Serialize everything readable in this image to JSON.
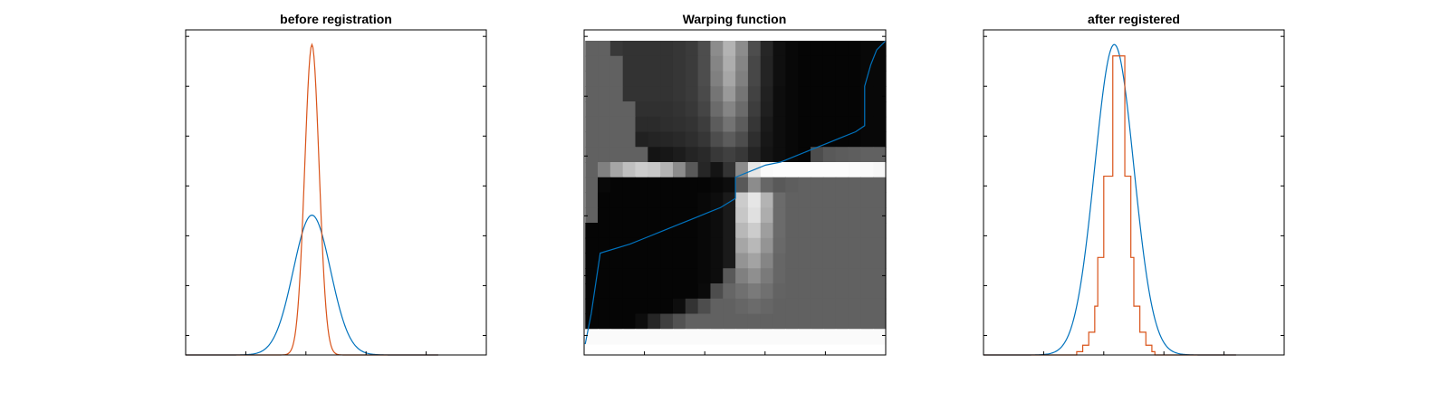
{
  "colors": {
    "blue": "#0072BD",
    "orange": "#D95319",
    "frame": "#000000"
  },
  "chart_data": [
    {
      "type": "line",
      "title": "before registration",
      "xlabel": "",
      "ylabel": "",
      "xlim": [
        0,
        1
      ],
      "ylim": [
        0,
        1
      ],
      "grid": false,
      "series": [
        {
          "color": "#0072BD",
          "gaussian": {
            "mu": 0.42,
            "sigma": 0.062,
            "amp": 0.43
          }
        },
        {
          "color": "#D95319",
          "gaussian": {
            "mu": 0.42,
            "sigma": 0.024,
            "amp": 0.955
          }
        }
      ]
    },
    {
      "type": "heatmap",
      "title": "Warping function",
      "xlabel": "",
      "ylabel": "",
      "xlim": [
        0,
        1
      ],
      "ylim": [
        0,
        1
      ],
      "grid": false,
      "heatmap_rows": [
        [
          0.38,
          0.38,
          0.22,
          0.2,
          0.2,
          0.2,
          0.2,
          0.21,
          0.23,
          0.3,
          0.55,
          0.7,
          0.55,
          0.3,
          0.15,
          0.06,
          0.03,
          0.02,
          0.02,
          0.02,
          0.02,
          0.02,
          0.03,
          0.03
        ],
        [
          0.38,
          0.38,
          0.38,
          0.2,
          0.2,
          0.2,
          0.2,
          0.21,
          0.23,
          0.3,
          0.52,
          0.68,
          0.52,
          0.28,
          0.14,
          0.06,
          0.03,
          0.02,
          0.02,
          0.02,
          0.02,
          0.02,
          0.03,
          0.03
        ],
        [
          0.38,
          0.38,
          0.38,
          0.2,
          0.2,
          0.2,
          0.2,
          0.21,
          0.23,
          0.3,
          0.5,
          0.65,
          0.5,
          0.28,
          0.14,
          0.06,
          0.03,
          0.02,
          0.02,
          0.02,
          0.02,
          0.02,
          0.03,
          0.03
        ],
        [
          0.38,
          0.38,
          0.38,
          0.2,
          0.2,
          0.2,
          0.2,
          0.21,
          0.23,
          0.29,
          0.46,
          0.6,
          0.46,
          0.26,
          0.13,
          0.05,
          0.03,
          0.02,
          0.02,
          0.02,
          0.02,
          0.02,
          0.03,
          0.03
        ],
        [
          0.38,
          0.38,
          0.38,
          0.38,
          0.19,
          0.19,
          0.19,
          0.2,
          0.22,
          0.27,
          0.42,
          0.52,
          0.42,
          0.24,
          0.12,
          0.05,
          0.03,
          0.02,
          0.02,
          0.02,
          0.02,
          0.02,
          0.03,
          0.03
        ],
        [
          0.38,
          0.38,
          0.38,
          0.38,
          0.17,
          0.17,
          0.18,
          0.19,
          0.2,
          0.24,
          0.36,
          0.45,
          0.36,
          0.21,
          0.1,
          0.05,
          0.03,
          0.02,
          0.02,
          0.02,
          0.02,
          0.02,
          0.03,
          0.03
        ],
        [
          0.38,
          0.38,
          0.38,
          0.38,
          0.13,
          0.14,
          0.15,
          0.16,
          0.18,
          0.21,
          0.3,
          0.36,
          0.3,
          0.18,
          0.09,
          0.05,
          0.03,
          0.02,
          0.02,
          0.02,
          0.02,
          0.02,
          0.03,
          0.03
        ],
        [
          0.38,
          0.38,
          0.38,
          0.38,
          0.38,
          0.08,
          0.09,
          0.11,
          0.14,
          0.16,
          0.22,
          0.25,
          0.22,
          0.14,
          0.08,
          0.05,
          0.03,
          0.02,
          0.3,
          0.35,
          0.36,
          0.37,
          0.38,
          0.38
        ],
        [
          0.38,
          0.5,
          0.65,
          0.75,
          0.8,
          0.78,
          0.7,
          0.55,
          0.35,
          0.15,
          0.08,
          0.2,
          0.55,
          0.9,
          0.98,
          0.99,
          0.99,
          0.99,
          0.99,
          0.99,
          0.99,
          0.98,
          0.98,
          0.97
        ],
        [
          0.38,
          0.03,
          0.02,
          0.02,
          0.02,
          0.02,
          0.02,
          0.02,
          0.02,
          0.02,
          0.03,
          0.05,
          0.35,
          0.55,
          0.4,
          0.35,
          0.37,
          0.38,
          0.38,
          0.38,
          0.38,
          0.38,
          0.38,
          0.38
        ],
        [
          0.38,
          0.02,
          0.02,
          0.02,
          0.02,
          0.02,
          0.02,
          0.02,
          0.02,
          0.03,
          0.05,
          0.1,
          0.8,
          0.9,
          0.7,
          0.42,
          0.38,
          0.38,
          0.38,
          0.38,
          0.38,
          0.38,
          0.38,
          0.38
        ],
        [
          0.38,
          0.02,
          0.02,
          0.02,
          0.02,
          0.02,
          0.02,
          0.02,
          0.02,
          0.03,
          0.05,
          0.1,
          0.78,
          0.88,
          0.68,
          0.42,
          0.38,
          0.38,
          0.38,
          0.38,
          0.38,
          0.38,
          0.38,
          0.38
        ],
        [
          0.02,
          0.02,
          0.02,
          0.02,
          0.02,
          0.02,
          0.02,
          0.02,
          0.02,
          0.03,
          0.05,
          0.1,
          0.72,
          0.8,
          0.62,
          0.42,
          0.38,
          0.38,
          0.38,
          0.38,
          0.38,
          0.38,
          0.38,
          0.38
        ],
        [
          0.02,
          0.02,
          0.02,
          0.02,
          0.02,
          0.02,
          0.02,
          0.02,
          0.02,
          0.03,
          0.05,
          0.1,
          0.65,
          0.72,
          0.58,
          0.41,
          0.38,
          0.38,
          0.38,
          0.38,
          0.38,
          0.38,
          0.38,
          0.38
        ],
        [
          0.02,
          0.02,
          0.02,
          0.02,
          0.02,
          0.02,
          0.02,
          0.02,
          0.02,
          0.03,
          0.05,
          0.1,
          0.58,
          0.64,
          0.52,
          0.4,
          0.38,
          0.38,
          0.38,
          0.38,
          0.38,
          0.38,
          0.38,
          0.38
        ],
        [
          0.02,
          0.02,
          0.02,
          0.02,
          0.02,
          0.02,
          0.02,
          0.02,
          0.02,
          0.03,
          0.05,
          0.35,
          0.5,
          0.56,
          0.48,
          0.4,
          0.38,
          0.38,
          0.38,
          0.38,
          0.38,
          0.38,
          0.38,
          0.38
        ],
        [
          0.02,
          0.02,
          0.02,
          0.02,
          0.02,
          0.02,
          0.02,
          0.02,
          0.02,
          0.04,
          0.3,
          0.4,
          0.44,
          0.48,
          0.44,
          0.39,
          0.38,
          0.38,
          0.38,
          0.38,
          0.38,
          0.38,
          0.38,
          0.38
        ],
        [
          0.02,
          0.02,
          0.02,
          0.02,
          0.02,
          0.02,
          0.02,
          0.05,
          0.2,
          0.3,
          0.38,
          0.38,
          0.4,
          0.42,
          0.4,
          0.38,
          0.38,
          0.38,
          0.38,
          0.38,
          0.38,
          0.38,
          0.38,
          0.38
        ],
        [
          0.02,
          0.02,
          0.02,
          0.02,
          0.05,
          0.15,
          0.25,
          0.32,
          0.38,
          0.38,
          0.38,
          0.38,
          0.38,
          0.38,
          0.38,
          0.38,
          0.38,
          0.38,
          0.38,
          0.38,
          0.38,
          0.38,
          0.38,
          0.38
        ],
        [
          0.98,
          0.98,
          0.98,
          0.98,
          0.98,
          0.98,
          0.98,
          0.98,
          0.98,
          0.98,
          0.98,
          0.98,
          0.98,
          0.98,
          0.98,
          0.98,
          0.98,
          0.98,
          0.98,
          0.98,
          0.98,
          0.98,
          0.98,
          0.98
        ]
      ],
      "series": [
        {
          "color": "#0072BD",
          "x": [
            0.0,
            0.02,
            0.05,
            0.15,
            0.2,
            0.25,
            0.3,
            0.35,
            0.4,
            0.45,
            0.5,
            0.5,
            0.55,
            0.6,
            0.65,
            0.7,
            0.75,
            0.8,
            0.85,
            0.9,
            0.93,
            0.93,
            0.95,
            0.97,
            1.0
          ],
          "y": [
            0.0,
            0.1,
            0.3,
            0.33,
            0.35,
            0.37,
            0.39,
            0.41,
            0.43,
            0.45,
            0.48,
            0.55,
            0.57,
            0.59,
            0.6,
            0.62,
            0.64,
            0.66,
            0.68,
            0.7,
            0.72,
            0.85,
            0.92,
            0.97,
            1.0
          ]
        }
      ]
    },
    {
      "type": "line",
      "title": "after registered",
      "xlabel": "",
      "ylabel": "",
      "xlim": [
        0,
        1
      ],
      "ylim": [
        0,
        1
      ],
      "grid": false,
      "series": [
        {
          "color": "#0072BD",
          "gaussian": {
            "mu": 0.435,
            "sigma": 0.065,
            "amp": 0.955
          }
        },
        {
          "color": "#D95319",
          "step_x": [
            0.3,
            0.31,
            0.33,
            0.35,
            0.37,
            0.38,
            0.4,
            0.43,
            0.47,
            0.49,
            0.5,
            0.52,
            0.54,
            0.56,
            0.57,
            0.59
          ],
          "step_y": [
            0.0,
            0.01,
            0.03,
            0.07,
            0.15,
            0.3,
            0.55,
            0.92,
            0.55,
            0.3,
            0.15,
            0.07,
            0.03,
            0.01,
            0.0,
            0.0
          ]
        }
      ]
    }
  ]
}
